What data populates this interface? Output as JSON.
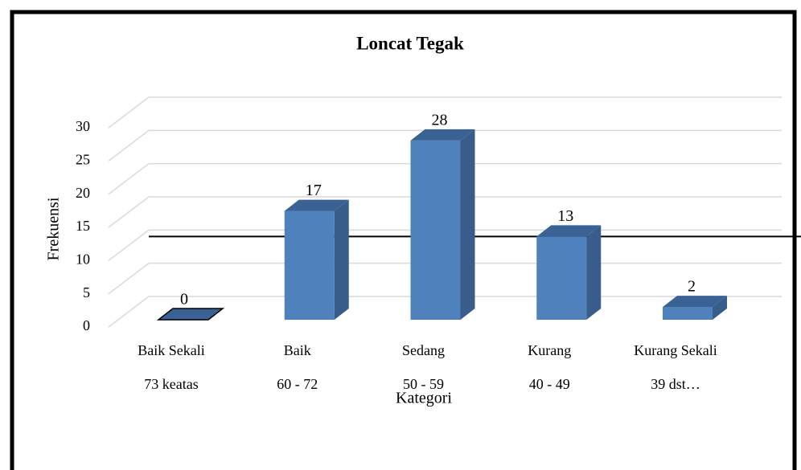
{
  "chart_data": {
    "type": "bar3d",
    "title": "Loncat Tegak",
    "categories": [
      [
        "Baik Sekali",
        "73 keatas"
      ],
      [
        "Baik",
        "60 - 72"
      ],
      [
        "Sedang",
        "50 - 59"
      ],
      [
        "Kurang",
        "40 - 49"
      ],
      [
        "Kurang Sekali",
        "39 dst…"
      ]
    ],
    "values": [
      0,
      17,
      28,
      13,
      2
    ],
    "color": "#4f81bd",
    "ylim": [
      0,
      30
    ],
    "yticks": [
      0,
      5,
      10,
      15,
      20,
      25,
      30
    ],
    "grid": true,
    "reference_line": 13,
    "xlabel": "Kategori",
    "ylabel": "Frekuensi"
  }
}
